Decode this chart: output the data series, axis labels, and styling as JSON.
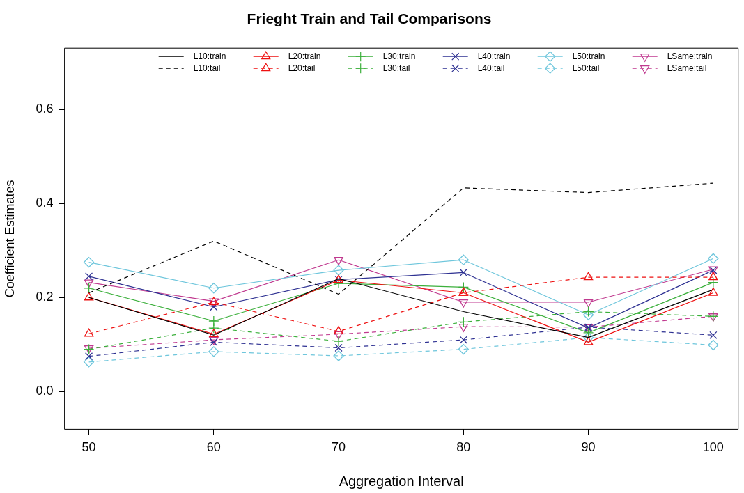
{
  "chart_data": {
    "type": "line",
    "title": "Frieght Train and Tail Comparisons",
    "xlabel": "Aggregation Interval",
    "ylabel": "Coefficient Estimates",
    "x": [
      50,
      60,
      70,
      80,
      90,
      100
    ],
    "xlim": [
      48.05,
      102
    ],
    "xticks": [
      50,
      60,
      70,
      80,
      90,
      100
    ],
    "ylim": [
      -0.08,
      0.73
    ],
    "yticks": [
      {
        "value": 0,
        "label": "0.0"
      },
      {
        "value": 0.2,
        "label": "0.2"
      },
      {
        "value": 0.4,
        "label": "0.4"
      },
      {
        "value": 0.6,
        "label": "0.6"
      }
    ],
    "grid": false,
    "legend": "top right",
    "series": [
      {
        "name": "L10:train",
        "color": "#000000",
        "marker": "none",
        "line_style": "solid",
        "values": [
          0.2,
          0.12,
          0.24,
          0.17,
          0.115,
          0.217
        ]
      },
      {
        "name": "L10:tail",
        "color": "#000000",
        "marker": "none",
        "line_style": "dashed",
        "values": [
          0.21,
          0.32,
          0.207,
          0.433,
          0.423,
          0.443
        ]
      },
      {
        "name": "L20:train",
        "color": "#ee1111",
        "marker": "triangle",
        "line_style": "solid",
        "values": [
          0.2,
          0.122,
          0.237,
          0.21,
          0.105,
          0.21
        ]
      },
      {
        "name": "L20:tail",
        "color": "#ee1111",
        "marker": "triangle",
        "line_style": "dashed",
        "values": [
          0.123,
          0.19,
          0.128,
          0.21,
          0.243,
          0.243
        ]
      },
      {
        "name": "L30:train",
        "color": "#3cb03c",
        "marker": "plus",
        "line_style": "solid",
        "values": [
          0.22,
          0.15,
          0.23,
          0.222,
          0.125,
          0.232
        ]
      },
      {
        "name": "L30:tail",
        "color": "#3cb03c",
        "marker": "plus",
        "line_style": "dashed",
        "values": [
          0.09,
          0.135,
          0.107,
          0.148,
          0.17,
          0.16
        ]
      },
      {
        "name": "L40:train",
        "color": "#2e3192",
        "marker": "x",
        "line_style": "solid",
        "values": [
          0.245,
          0.18,
          0.238,
          0.253,
          0.135,
          0.258
        ]
      },
      {
        "name": "L40:tail",
        "color": "#2e3192",
        "marker": "x",
        "line_style": "dashed",
        "values": [
          0.075,
          0.105,
          0.093,
          0.11,
          0.137,
          0.12
        ]
      },
      {
        "name": "L50:train",
        "color": "#6ec6dc",
        "marker": "diamond",
        "line_style": "solid",
        "values": [
          0.275,
          0.22,
          0.258,
          0.28,
          0.163,
          0.283
        ]
      },
      {
        "name": "L50:tail",
        "color": "#6ec6dc",
        "marker": "diamond",
        "line_style": "dashed",
        "values": [
          0.063,
          0.085,
          0.076,
          0.09,
          0.115,
          0.099
        ]
      },
      {
        "name": "LSame:train",
        "color": "#c0398f",
        "marker": "triangle_down",
        "line_style": "solid",
        "values": [
          0.232,
          0.192,
          0.28,
          0.19,
          0.19,
          0.26
        ]
      },
      {
        "name": "LSame:tail",
        "color": "#c0398f",
        "marker": "triangle_down",
        "line_style": "dashed",
        "values": [
          0.092,
          0.11,
          0.122,
          0.138,
          0.137,
          0.16
        ]
      }
    ]
  }
}
